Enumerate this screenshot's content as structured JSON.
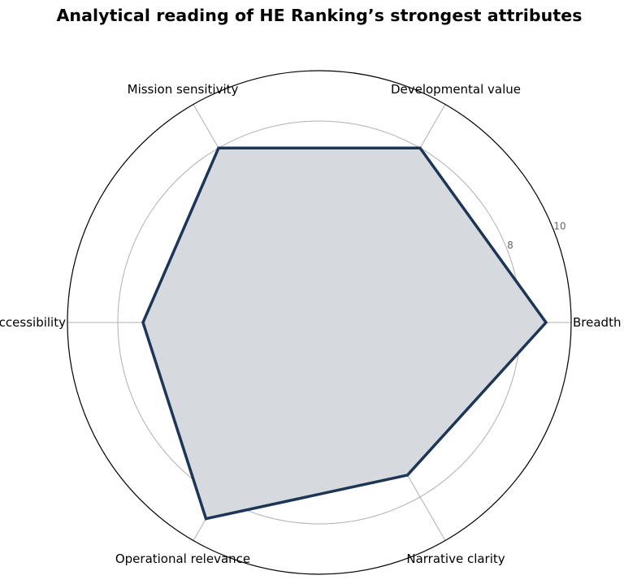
{
  "chart_data": {
    "type": "radar",
    "title": "Analytical reading of HE Ranking’s strongest attributes",
    "categories": [
      "Breadth",
      "Developmental value",
      "Mission sensitivity",
      "Accessibility",
      "Operational relevance",
      "Narrative clarity"
    ],
    "series": [
      {
        "values": [
          9.0,
          8.0,
          8.0,
          7.0,
          9.0,
          7.0
        ]
      }
    ],
    "rlim": [
      0,
      10
    ],
    "rticks": [
      2,
      4,
      6,
      8,
      10
    ],
    "grid": true,
    "colors": {
      "line": "#1d3557",
      "fill": "#d6dade",
      "grid": "#b0b0b0",
      "spokes": "#b0b0b0",
      "outer": "#000000"
    }
  }
}
